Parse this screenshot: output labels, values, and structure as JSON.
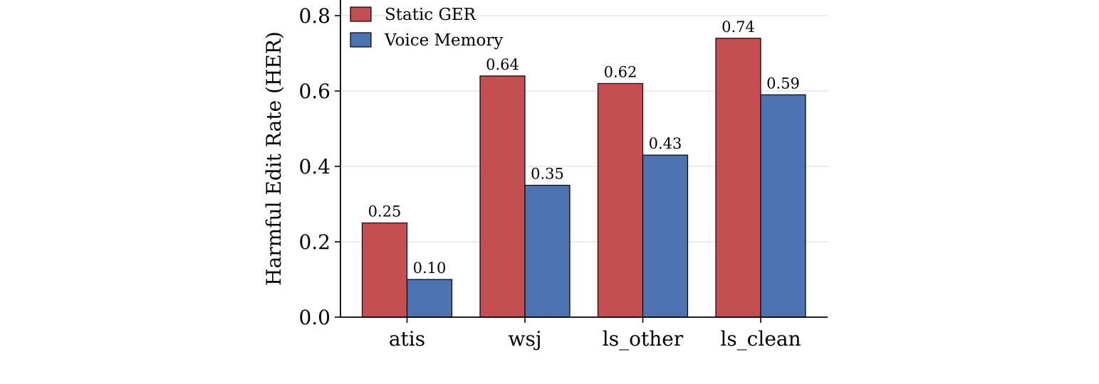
{
  "chart_data": {
    "type": "bar",
    "title": "",
    "xlabel": "",
    "ylabel": "Harmful Edit Rate (HER)",
    "categories": [
      "atis",
      "wsj",
      "ls_other",
      "ls_clean"
    ],
    "series": [
      {
        "name": "Static GER",
        "color": "#c44e52",
        "values": [
          0.25,
          0.64,
          0.62,
          0.74
        ]
      },
      {
        "name": "Voice Memory",
        "color": "#4c72b0",
        "values": [
          0.1,
          0.35,
          0.43,
          0.59
        ]
      }
    ],
    "data_labels": [
      [
        "0.25",
        "0.64",
        "0.62",
        "0.74"
      ],
      [
        "0.10",
        "0.35",
        "0.43",
        "0.59"
      ]
    ],
    "ylim": [
      0,
      0.8
    ],
    "yticks": [
      0.0,
      0.2,
      0.4,
      0.6,
      0.8
    ],
    "ytick_labels": [
      "0.0",
      "0.2",
      "0.4",
      "0.6",
      "0.8"
    ],
    "grid": "horizontal",
    "legend_position": "upper-left"
  }
}
